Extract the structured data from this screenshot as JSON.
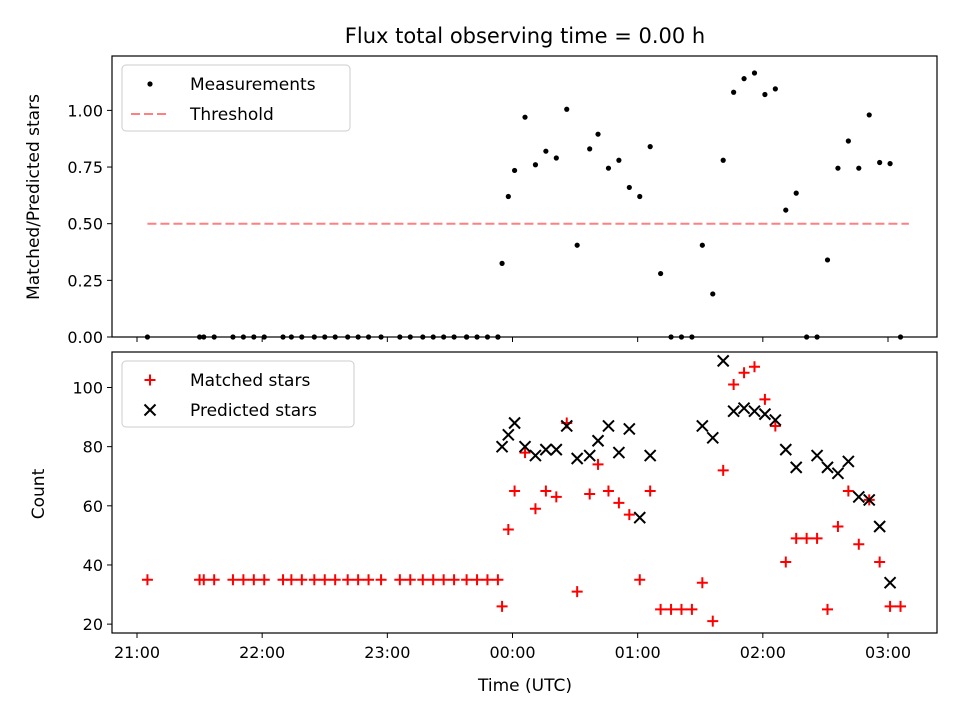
{
  "figure": {
    "title": "Flux total observing time = 0.00 h",
    "xlabel": "Time (UTC)"
  },
  "chart_data": [
    {
      "type": "scatter",
      "ylabel": "Matched/Predicted stars",
      "ylim": [
        0,
        1.24
      ],
      "xlim": [
        "20:50",
        "03:25"
      ],
      "yticks": [
        "0.00",
        "0.25",
        "0.50",
        "0.75",
        "1.00"
      ],
      "ytick_values": [
        0,
        0.25,
        0.5,
        0.75,
        1.0
      ],
      "legend_position": "upper left",
      "series": [
        {
          "name": "Measurements",
          "kind": "dot",
          "color": "#000000",
          "x": [
            "21:05",
            "21:30",
            "21:32",
            "21:37",
            "21:46",
            "21:51",
            "21:56",
            "22:01",
            "22:10",
            "22:14",
            "22:19",
            "22:25",
            "22:30",
            "22:35",
            "22:41",
            "22:46",
            "22:51",
            "22:57",
            "23:06",
            "23:11",
            "23:17",
            "23:22",
            "23:27",
            "23:32",
            "23:38",
            "23:43",
            "23:48",
            "23:53",
            "23:38",
            "23:53",
            "23:55",
            "23:58",
            "00:01",
            "00:06",
            "00:11",
            "00:16",
            "00:21",
            "00:26",
            "00:31",
            "00:37",
            "00:41",
            "00:46",
            "00:51",
            "00:56",
            "01:01",
            "01:06",
            "01:11",
            "01:16",
            "01:21",
            "01:26",
            "01:31",
            "01:36",
            "01:41",
            "01:46",
            "01:51",
            "01:56",
            "02:01",
            "02:06",
            "02:11",
            "02:16",
            "02:21",
            "02:26",
            "02:31",
            "02:36",
            "02:41",
            "02:46",
            "02:51",
            "02:56",
            "03:01",
            "03:06"
          ],
          "y": [
            0,
            0,
            0,
            0,
            0,
            0,
            0,
            0,
            0,
            0,
            0,
            0,
            0,
            0,
            0,
            0,
            0,
            0,
            0,
            0,
            0,
            0,
            0,
            0,
            0,
            0,
            0,
            0,
            0,
            0,
            0.325,
            0.62,
            0.735,
            0.97,
            0.76,
            0.82,
            0.79,
            1.005,
            0.405,
            0.83,
            0.895,
            0.745,
            0.78,
            0.66,
            0.62,
            0.84,
            0.28,
            0,
            0,
            0,
            0.405,
            0.19,
            0.78,
            1.08,
            1.14,
            1.165,
            1.07,
            1.095,
            0.56,
            0.635,
            0,
            0,
            0.34,
            0.745,
            0.865,
            0.745,
            0.98,
            0.77,
            0.765,
            0
          ]
        },
        {
          "name": "Threshold",
          "kind": "dashed-line",
          "color": "#ff8080",
          "x": [
            "21:05",
            "03:10"
          ],
          "y": [
            0.5,
            0.5
          ]
        }
      ]
    },
    {
      "type": "scatter",
      "ylabel": "Count",
      "ylim": [
        17,
        112
      ],
      "xlim": [
        "20:50",
        "03:25"
      ],
      "yticks": [
        "20",
        "40",
        "60",
        "80",
        "100"
      ],
      "ytick_values": [
        20,
        40,
        60,
        80,
        100
      ],
      "xticks": [
        "21:00",
        "22:00",
        "23:00",
        "00:00",
        "01:00",
        "02:00",
        "03:00"
      ],
      "legend_position": "upper left",
      "series": [
        {
          "name": "Matched stars",
          "kind": "plus",
          "color": "#ff0000",
          "x": [
            "21:05",
            "21:30",
            "21:32",
            "21:37",
            "21:46",
            "21:51",
            "21:56",
            "22:01",
            "22:10",
            "22:14",
            "22:19",
            "22:25",
            "22:30",
            "22:35",
            "22:41",
            "22:46",
            "22:51",
            "22:57",
            "23:06",
            "23:11",
            "23:17",
            "23:22",
            "23:27",
            "23:32",
            "23:38",
            "23:43",
            "23:48",
            "23:53",
            "23:55",
            "23:58",
            "00:01",
            "00:06",
            "00:11",
            "00:16",
            "00:21",
            "00:26",
            "00:31",
            "00:37",
            "00:41",
            "00:46",
            "00:51",
            "00:56",
            "01:01",
            "01:06",
            "01:11",
            "01:16",
            "01:21",
            "01:26",
            "01:31",
            "01:36",
            "01:41",
            "01:46",
            "01:51",
            "01:56",
            "02:01",
            "02:06",
            "02:11",
            "02:16",
            "02:21",
            "02:26",
            "02:31",
            "02:36",
            "02:41",
            "02:46",
            "02:51",
            "02:56",
            "03:01",
            "03:06"
          ],
          "y": [
            35,
            35,
            35,
            35,
            35,
            35,
            35,
            35,
            35,
            35,
            35,
            35,
            35,
            35,
            35,
            35,
            35,
            35,
            35,
            35,
            35,
            35,
            35,
            35,
            35,
            35,
            35,
            35,
            26,
            52,
            65,
            78,
            59,
            65,
            63,
            88,
            31,
            64,
            74,
            65,
            61,
            57,
            35,
            65,
            25,
            25,
            25,
            25,
            34,
            21,
            72,
            101,
            105,
            107,
            96,
            87,
            41,
            49,
            49,
            49,
            25,
            53,
            65,
            47,
            62,
            41,
            26,
            26
          ]
        },
        {
          "name": "Predicted stars",
          "kind": "x",
          "color": "#000000",
          "x": [
            "23:55",
            "23:58",
            "00:01",
            "00:06",
            "00:11",
            "00:16",
            "00:21",
            "00:26",
            "00:31",
            "00:37",
            "00:41",
            "00:46",
            "00:51",
            "00:56",
            "01:01",
            "01:06",
            "01:31",
            "01:36",
            "01:41",
            "01:46",
            "01:51",
            "01:56",
            "02:01",
            "02:06",
            "02:11",
            "02:16",
            "02:26",
            "02:31",
            "02:36",
            "02:41",
            "02:46",
            "02:51",
            "02:56",
            "03:01"
          ],
          "y": [
            80,
            84,
            88,
            80,
            77,
            79,
            79,
            87,
            76,
            77,
            82,
            87,
            78,
            86,
            56,
            77,
            87,
            83,
            109,
            92,
            93,
            92,
            91,
            89,
            79,
            73,
            77,
            73,
            71,
            75,
            63,
            62,
            53,
            34
          ]
        }
      ]
    }
  ]
}
